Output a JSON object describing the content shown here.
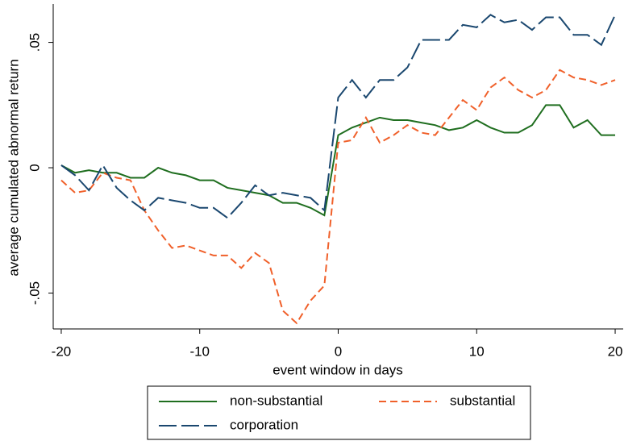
{
  "chart_data": {
    "type": "line",
    "x_label": "event window in days",
    "y_label": "average cumulated abnormal return",
    "x": [
      -20,
      -19,
      -18,
      -17,
      -16,
      -15,
      -14,
      -13,
      -12,
      -11,
      -10,
      -9,
      -8,
      -7,
      -6,
      -5,
      -4,
      -3,
      -2,
      -1,
      0,
      1,
      2,
      3,
      4,
      5,
      6,
      7,
      8,
      9,
      10,
      11,
      12,
      13,
      14,
      15,
      16,
      17,
      18,
      19,
      20
    ],
    "series": [
      {
        "name": "non-substantial",
        "color": "#1f6e1f",
        "line_style": "solid",
        "values": [
          0.001,
          -0.002,
          -0.001,
          -0.002,
          -0.002,
          -0.004,
          -0.004,
          0.0,
          -0.002,
          -0.003,
          -0.005,
          -0.005,
          -0.008,
          -0.009,
          -0.01,
          -0.011,
          -0.014,
          -0.014,
          -0.016,
          -0.019,
          0.013,
          0.016,
          0.018,
          0.02,
          0.019,
          0.019,
          0.018,
          0.017,
          0.015,
          0.016,
          0.019,
          0.016,
          0.014,
          0.014,
          0.017,
          0.025,
          0.025,
          0.016,
          0.019,
          0.013,
          0.013
        ]
      },
      {
        "name": "substantial",
        "color": "#f0602a",
        "line_style": "short-dash",
        "values": [
          -0.005,
          -0.01,
          -0.009,
          -0.002,
          -0.004,
          -0.005,
          -0.017,
          -0.025,
          -0.032,
          -0.031,
          -0.033,
          -0.035,
          -0.035,
          -0.04,
          -0.034,
          -0.038,
          -0.057,
          -0.062,
          -0.053,
          -0.047,
          0.01,
          0.011,
          0.02,
          0.01,
          0.013,
          0.017,
          0.014,
          0.013,
          0.02,
          0.027,
          0.023,
          0.032,
          0.036,
          0.031,
          0.028,
          0.031,
          0.039,
          0.036,
          0.035,
          0.033,
          0.035
        ]
      },
      {
        "name": "corporation",
        "color": "#1a476f",
        "line_style": "long-dash",
        "values": [
          0.001,
          -0.003,
          -0.009,
          0.001,
          -0.008,
          -0.013,
          -0.017,
          -0.012,
          -0.013,
          -0.014,
          -0.016,
          -0.016,
          -0.02,
          -0.014,
          -0.007,
          -0.011,
          -0.01,
          -0.011,
          -0.012,
          -0.017,
          0.028,
          0.035,
          0.028,
          0.035,
          0.035,
          0.04,
          0.051,
          0.051,
          0.051,
          0.057,
          0.056,
          0.061,
          0.058,
          0.059,
          0.055,
          0.06,
          0.06,
          0.053,
          0.053,
          0.049,
          0.061
        ]
      }
    ],
    "xlim": [
      -20.58,
      20.58
    ],
    "ylim": [
      -0.0643,
      0.0653
    ],
    "xticks": [
      -20,
      -10,
      0,
      10,
      20
    ],
    "yticks": [
      {
        "value": -0.05,
        "label": "-.05"
      },
      0,
      {
        "value": 0.05,
        "label": ".05"
      }
    ],
    "grid": false,
    "legend": "bottom"
  }
}
